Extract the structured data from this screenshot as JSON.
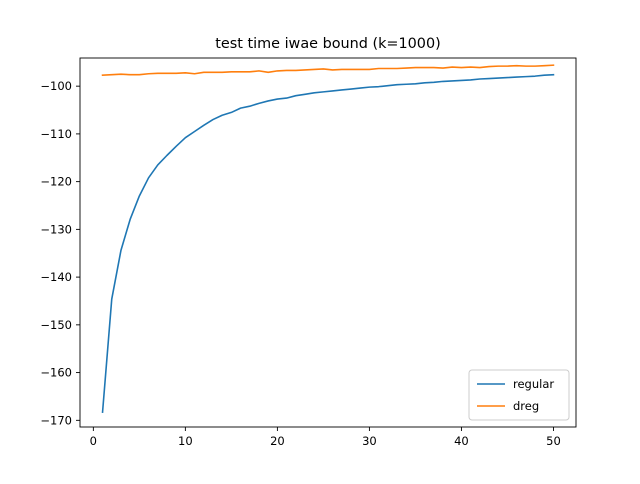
{
  "chart_data": {
    "type": "line",
    "title": "test time iwae bound (k=1000)",
    "xlabel": "",
    "ylabel": "",
    "xlim": [
      -1.45,
      52.45
    ],
    "ylim": [
      -171.4,
      -94.1
    ],
    "x_ticks": [
      0,
      10,
      20,
      30,
      40,
      50
    ],
    "y_ticks": [
      -170,
      -160,
      -150,
      -140,
      -130,
      -120,
      -110,
      -100
    ],
    "x_tick_labels": [
      "0",
      "10",
      "20",
      "30",
      "40",
      "50"
    ],
    "y_tick_labels": [
      "−170",
      "−160",
      "−150",
      "−140",
      "−130",
      "−120",
      "−110",
      "−100"
    ],
    "grid": false,
    "legend_position": "lower right",
    "x": [
      1,
      2,
      3,
      4,
      5,
      6,
      7,
      8,
      9,
      10,
      11,
      12,
      13,
      14,
      15,
      16,
      17,
      18,
      19,
      20,
      21,
      22,
      23,
      24,
      25,
      26,
      27,
      28,
      29,
      30,
      31,
      32,
      33,
      34,
      35,
      36,
      37,
      38,
      39,
      40,
      41,
      42,
      43,
      44,
      45,
      46,
      47,
      48,
      49,
      50
    ],
    "series": [
      {
        "name": "regular",
        "color": "#1f77b4",
        "values": [
          -168.3,
          -144.6,
          -134.4,
          -127.9,
          -123.0,
          -119.2,
          -116.5,
          -114.5,
          -112.6,
          -110.8,
          -109.5,
          -108.2,
          -107.0,
          -106.1,
          -105.5,
          -104.6,
          -104.2,
          -103.6,
          -103.1,
          -102.7,
          -102.5,
          -102.0,
          -101.7,
          -101.4,
          -101.2,
          -101.0,
          -100.8,
          -100.6,
          -100.4,
          -100.2,
          -100.1,
          -99.9,
          -99.7,
          -99.6,
          -99.5,
          -99.3,
          -99.2,
          -99.0,
          -98.9,
          -98.8,
          -98.7,
          -98.5,
          -98.4,
          -98.3,
          -98.2,
          -98.1,
          -98.0,
          -97.9,
          -97.7,
          -97.6
        ]
      },
      {
        "name": "dreg",
        "color": "#ff7f0e",
        "values": [
          -97.7,
          -97.6,
          -97.5,
          -97.6,
          -97.6,
          -97.4,
          -97.3,
          -97.3,
          -97.3,
          -97.2,
          -97.4,
          -97.1,
          -97.1,
          -97.1,
          -97.0,
          -97.0,
          -97.0,
          -96.8,
          -97.1,
          -96.8,
          -96.7,
          -96.7,
          -96.6,
          -96.5,
          -96.4,
          -96.6,
          -96.5,
          -96.5,
          -96.5,
          -96.5,
          -96.3,
          -96.3,
          -96.3,
          -96.2,
          -96.1,
          -96.1,
          -96.1,
          -96.2,
          -96.0,
          -96.1,
          -96.0,
          -96.1,
          -95.9,
          -95.8,
          -95.8,
          -95.7,
          -95.8,
          -95.8,
          -95.7,
          -95.6
        ]
      }
    ]
  }
}
